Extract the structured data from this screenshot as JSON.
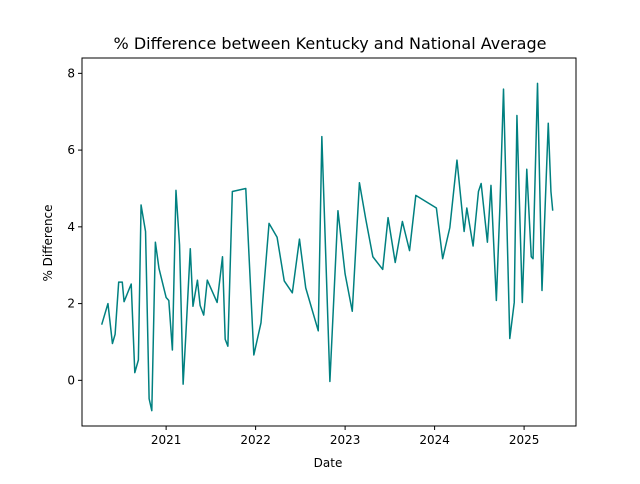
{
  "chart_data": {
    "type": "line",
    "title": "% Difference between Kentucky and National Average",
    "xlabel": "Date",
    "ylabel": "% Difference",
    "color": "#008080",
    "x": [
      2020.28,
      2020.35,
      2020.4,
      2020.43,
      2020.47,
      2020.51,
      2020.53,
      2020.61,
      2020.65,
      2020.69,
      2020.72,
      2020.77,
      2020.81,
      2020.84,
      2020.88,
      2020.92,
      2021.0,
      2021.03,
      2021.07,
      2021.11,
      2021.15,
      2021.19,
      2021.22,
      2021.27,
      2021.3,
      2021.35,
      2021.38,
      2021.42,
      2021.46,
      2021.57,
      2021.63,
      2021.66,
      2021.69,
      2021.74,
      2021.89,
      2021.98,
      2022.06,
      2022.15,
      2022.24,
      2022.32,
      2022.41,
      2022.49,
      2022.56,
      2022.7,
      2022.74,
      2022.83,
      2022.92,
      2023.0,
      2023.08,
      2023.16,
      2023.23,
      2023.31,
      2023.42,
      2023.48,
      2023.56,
      2023.64,
      2023.72,
      2023.79,
      2024.02,
      2024.09,
      2024.17,
      2024.25,
      2024.33,
      2024.36,
      2024.43,
      2024.49,
      2024.52,
      2024.59,
      2024.63,
      2024.69,
      2024.73,
      2024.77,
      2024.84,
      2024.89,
      2024.92,
      2024.98,
      2025.03,
      2025.08,
      2025.1,
      2025.15,
      2025.2,
      2025.27,
      2025.3,
      2025.32
    ],
    "values": [
      1.45,
      2.0,
      0.96,
      1.2,
      2.56,
      2.56,
      2.05,
      2.51,
      0.2,
      0.53,
      4.57,
      3.88,
      -0.48,
      -0.79,
      3.6,
      2.92,
      2.16,
      2.08,
      0.79,
      4.95,
      3.53,
      -0.1,
      1.17,
      3.43,
      1.93,
      2.61,
      1.95,
      1.7,
      2.61,
      2.03,
      3.22,
      1.07,
      0.89,
      4.92,
      5.0,
      0.66,
      1.5,
      4.09,
      3.73,
      2.59,
      2.28,
      3.68,
      2.41,
      1.29,
      6.35,
      -0.03,
      4.42,
      2.77,
      1.8,
      5.15,
      4.21,
      3.22,
      2.89,
      4.24,
      3.07,
      4.14,
      3.38,
      4.82,
      4.49,
      3.17,
      3.98,
      5.74,
      3.88,
      4.49,
      3.5,
      4.92,
      5.13,
      3.6,
      5.08,
      2.08,
      4.54,
      7.59,
      1.09,
      2.03,
      6.9,
      2.03,
      5.5,
      3.22,
      3.17,
      7.74,
      2.34,
      6.7,
      4.92,
      4.42
    ],
    "xlim": [
      2020.06,
      2025.58
    ],
    "xticks": [
      2021,
      2022,
      2023,
      2024,
      2025
    ],
    "ylim": [
      -1.19,
      8.4
    ],
    "yticks": [
      0,
      2,
      4,
      6,
      8
    ]
  }
}
